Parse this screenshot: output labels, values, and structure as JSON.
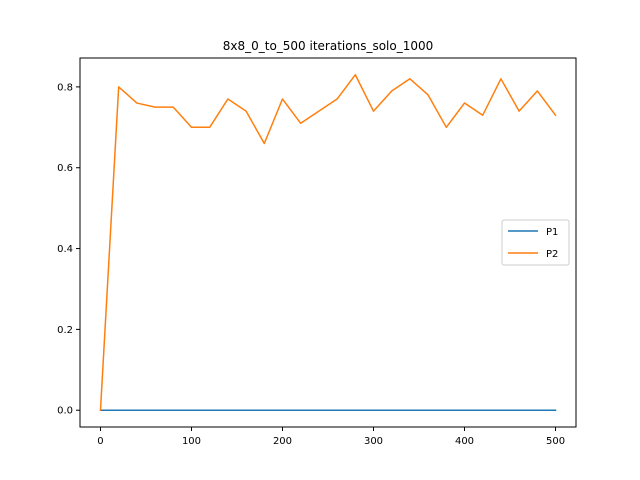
{
  "chart_data": {
    "type": "line",
    "title": "8x8_0_to_500 iterations_solo_1000",
    "xlabel": "",
    "ylabel": "",
    "xlim": [
      -22.5,
      522.5
    ],
    "ylim": [
      -0.0415,
      0.8715
    ],
    "x_ticks": [
      0,
      100,
      200,
      300,
      400,
      500
    ],
    "y_ticks": [
      0.0,
      0.2,
      0.4,
      0.6,
      0.8
    ],
    "x_tick_labels": [
      "0",
      "100",
      "200",
      "300",
      "400",
      "500"
    ],
    "y_tick_labels": [
      "0.0",
      "0.2",
      "0.4",
      "0.6",
      "0.8"
    ],
    "grid": false,
    "legend_position": "center-right",
    "x": [
      0,
      20,
      40,
      60,
      80,
      100,
      120,
      140,
      160,
      180,
      200,
      220,
      240,
      260,
      280,
      300,
      320,
      340,
      360,
      380,
      400,
      420,
      440,
      460,
      480,
      500
    ],
    "series": [
      {
        "name": "P1",
        "color": "#1f77b4",
        "values": [
          0,
          0,
          0,
          0,
          0,
          0,
          0,
          0,
          0,
          0,
          0,
          0,
          0,
          0,
          0,
          0,
          0,
          0,
          0,
          0,
          0,
          0,
          0,
          0,
          0,
          0
        ]
      },
      {
        "name": "P2",
        "color": "#ff7f0e",
        "values": [
          0,
          0.8,
          0.76,
          0.75,
          0.75,
          0.7,
          0.7,
          0.77,
          0.74,
          0.66,
          0.77,
          0.71,
          0.74,
          0.77,
          0.83,
          0.74,
          0.79,
          0.82,
          0.78,
          0.7,
          0.76,
          0.73,
          0.82,
          0.74,
          0.79,
          0.73
        ]
      }
    ]
  }
}
